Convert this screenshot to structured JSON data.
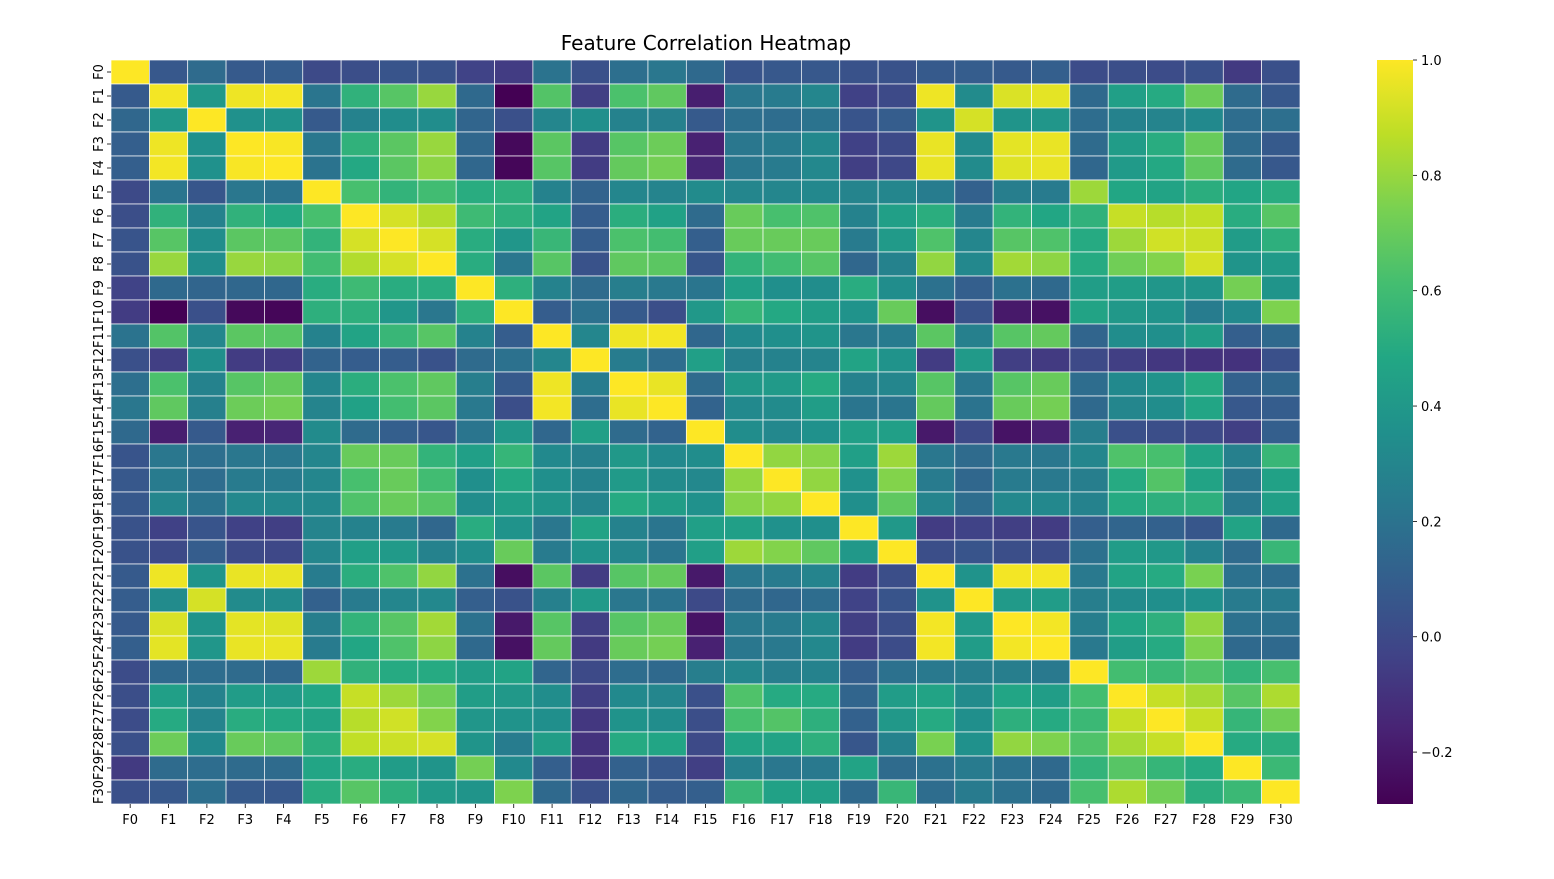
{
  "chart_data": {
    "type": "heatmap",
    "title": "Feature Correlation Heatmap",
    "xlabel": "",
    "ylabel": "",
    "colormap": "viridis",
    "color_range": [
      -0.29,
      1.0
    ],
    "colorbar_ticks": [
      "1.0",
      "0.8",
      "0.6",
      "0.4",
      "0.2",
      "0.0",
      "−0.2"
    ],
    "colorbar_tick_values": [
      1.0,
      0.8,
      0.6,
      0.4,
      0.2,
      0.0,
      -0.2
    ],
    "grid_lines": true,
    "grid_color": "#ffffff",
    "labels": [
      "F0",
      "F1",
      "F2",
      "F3",
      "F4",
      "F5",
      "F6",
      "F7",
      "F8",
      "F9",
      "F10",
      "F11",
      "F12",
      "F13",
      "F14",
      "F15",
      "F16",
      "F17",
      "F18",
      "F19",
      "F20",
      "F21",
      "F22",
      "F23",
      "F24",
      "F25",
      "F26",
      "F27",
      "F28",
      "F29",
      "F30"
    ],
    "values": [
      [
        1.0,
        0.07,
        0.16,
        0.08,
        0.09,
        0.0,
        0.02,
        0.05,
        0.04,
        -0.03,
        -0.06,
        0.2,
        0.03,
        0.18,
        0.22,
        0.15,
        0.05,
        0.07,
        0.07,
        0.04,
        0.04,
        0.08,
        0.09,
        0.08,
        0.1,
        0.01,
        0.02,
        0.01,
        0.03,
        -0.07,
        0.03
      ],
      [
        0.08,
        0.98,
        0.4,
        0.97,
        0.98,
        0.21,
        0.54,
        0.66,
        0.8,
        0.15,
        -0.29,
        0.65,
        -0.05,
        0.63,
        0.68,
        -0.18,
        0.22,
        0.24,
        0.3,
        -0.04,
        0.0,
        0.97,
        0.33,
        0.93,
        0.95,
        0.15,
        0.44,
        0.5,
        0.71,
        0.16,
        0.07
      ],
      [
        0.14,
        0.4,
        1.0,
        0.36,
        0.37,
        0.08,
        0.28,
        0.34,
        0.34,
        0.13,
        0.03,
        0.3,
        0.35,
        0.28,
        0.27,
        0.08,
        0.18,
        0.17,
        0.2,
        0.05,
        0.09,
        0.38,
        0.92,
        0.38,
        0.39,
        0.17,
        0.28,
        0.29,
        0.32,
        0.17,
        0.18
      ],
      [
        0.1,
        0.97,
        0.36,
        1.0,
        0.99,
        0.22,
        0.54,
        0.67,
        0.8,
        0.14,
        -0.26,
        0.67,
        -0.06,
        0.66,
        0.71,
        -0.17,
        0.22,
        0.24,
        0.31,
        -0.04,
        0.0,
        0.96,
        0.33,
        0.95,
        0.96,
        0.16,
        0.42,
        0.51,
        0.7,
        0.16,
        0.08
      ],
      [
        0.1,
        0.98,
        0.36,
        0.99,
        1.0,
        0.2,
        0.49,
        0.67,
        0.78,
        0.14,
        -0.27,
        0.66,
        -0.06,
        0.69,
        0.73,
        -0.15,
        0.22,
        0.24,
        0.31,
        -0.05,
        -0.01,
        0.96,
        0.33,
        0.94,
        0.96,
        0.14,
        0.41,
        0.49,
        0.68,
        0.16,
        0.07
      ],
      [
        0.0,
        0.21,
        0.06,
        0.22,
        0.2,
        1.0,
        0.62,
        0.55,
        0.6,
        0.51,
        0.53,
        0.28,
        0.12,
        0.3,
        0.29,
        0.33,
        0.3,
        0.3,
        0.31,
        0.29,
        0.3,
        0.25,
        0.11,
        0.26,
        0.24,
        0.81,
        0.48,
        0.46,
        0.52,
        0.47,
        0.51
      ],
      [
        0.02,
        0.54,
        0.28,
        0.54,
        0.49,
        0.62,
        1.0,
        0.92,
        0.85,
        0.59,
        0.53,
        0.46,
        0.09,
        0.52,
        0.45,
        0.16,
        0.7,
        0.62,
        0.64,
        0.28,
        0.44,
        0.52,
        0.24,
        0.55,
        0.48,
        0.54,
        0.89,
        0.86,
        0.88,
        0.51,
        0.66
      ],
      [
        0.05,
        0.66,
        0.34,
        0.67,
        0.67,
        0.55,
        0.92,
        1.0,
        0.92,
        0.51,
        0.39,
        0.57,
        0.09,
        0.63,
        0.61,
        0.1,
        0.7,
        0.7,
        0.7,
        0.24,
        0.41,
        0.64,
        0.3,
        0.66,
        0.64,
        0.5,
        0.81,
        0.91,
        0.9,
        0.42,
        0.53
      ],
      [
        0.04,
        0.8,
        0.34,
        0.8,
        0.78,
        0.6,
        0.85,
        0.92,
        1.0,
        0.51,
        0.22,
        0.66,
        0.04,
        0.68,
        0.67,
        0.06,
        0.55,
        0.6,
        0.66,
        0.14,
        0.28,
        0.79,
        0.31,
        0.82,
        0.78,
        0.5,
        0.72,
        0.76,
        0.92,
        0.38,
        0.41
      ],
      [
        -0.03,
        0.15,
        0.13,
        0.14,
        0.14,
        0.51,
        0.59,
        0.51,
        0.51,
        1.0,
        0.53,
        0.28,
        0.16,
        0.26,
        0.23,
        0.21,
        0.44,
        0.35,
        0.34,
        0.51,
        0.34,
        0.19,
        0.1,
        0.19,
        0.15,
        0.43,
        0.43,
        0.39,
        0.38,
        0.73,
        0.38
      ],
      [
        -0.06,
        -0.29,
        0.03,
        -0.26,
        -0.27,
        0.53,
        0.53,
        0.39,
        0.22,
        0.53,
        1.0,
        0.09,
        0.19,
        0.08,
        0.02,
        0.4,
        0.56,
        0.49,
        0.43,
        0.37,
        0.7,
        -0.24,
        0.04,
        -0.2,
        -0.23,
        0.46,
        0.4,
        0.37,
        0.25,
        0.32,
        0.75
      ],
      [
        0.2,
        0.65,
        0.3,
        0.67,
        0.66,
        0.28,
        0.46,
        0.57,
        0.66,
        0.28,
        0.09,
        1.0,
        0.3,
        0.97,
        0.98,
        0.14,
        0.32,
        0.35,
        0.38,
        0.22,
        0.24,
        0.67,
        0.27,
        0.66,
        0.69,
        0.13,
        0.34,
        0.35,
        0.43,
        0.1,
        0.15
      ],
      [
        0.03,
        -0.05,
        0.35,
        -0.06,
        -0.06,
        0.12,
        0.09,
        0.09,
        0.04,
        0.16,
        0.19,
        0.3,
        1.0,
        0.25,
        0.17,
        0.44,
        0.27,
        0.28,
        0.29,
        0.46,
        0.37,
        -0.06,
        0.41,
        -0.05,
        -0.07,
        0.0,
        -0.05,
        -0.08,
        -0.1,
        -0.1,
        0.03
      ],
      [
        0.18,
        0.63,
        0.28,
        0.66,
        0.69,
        0.3,
        0.52,
        0.63,
        0.68,
        0.26,
        0.08,
        0.97,
        0.25,
        1.0,
        0.96,
        0.16,
        0.4,
        0.41,
        0.5,
        0.28,
        0.3,
        0.66,
        0.22,
        0.66,
        0.7,
        0.17,
        0.32,
        0.37,
        0.5,
        0.11,
        0.14
      ],
      [
        0.22,
        0.68,
        0.27,
        0.71,
        0.73,
        0.29,
        0.45,
        0.61,
        0.67,
        0.23,
        0.02,
        0.98,
        0.17,
        0.96,
        1.0,
        0.12,
        0.32,
        0.33,
        0.43,
        0.21,
        0.21,
        0.69,
        0.2,
        0.7,
        0.73,
        0.15,
        0.3,
        0.34,
        0.47,
        0.07,
        0.09
      ],
      [
        0.15,
        -0.18,
        0.08,
        -0.17,
        -0.15,
        0.33,
        0.16,
        0.1,
        0.06,
        0.21,
        0.4,
        0.14,
        0.44,
        0.16,
        0.12,
        1.0,
        0.34,
        0.31,
        0.36,
        0.44,
        0.44,
        -0.2,
        0.0,
        -0.22,
        -0.17,
        0.26,
        0.03,
        0.02,
        0.0,
        -0.05,
        0.1
      ],
      [
        0.05,
        0.22,
        0.18,
        0.22,
        0.22,
        0.3,
        0.7,
        0.7,
        0.55,
        0.44,
        0.56,
        0.32,
        0.27,
        0.4,
        0.32,
        0.34,
        1.0,
        0.79,
        0.77,
        0.44,
        0.81,
        0.22,
        0.16,
        0.23,
        0.22,
        0.3,
        0.64,
        0.62,
        0.46,
        0.27,
        0.57
      ],
      [
        0.07,
        0.24,
        0.17,
        0.24,
        0.24,
        0.3,
        0.62,
        0.7,
        0.6,
        0.35,
        0.49,
        0.35,
        0.28,
        0.41,
        0.33,
        0.31,
        0.79,
        1.0,
        0.79,
        0.36,
        0.76,
        0.24,
        0.14,
        0.24,
        0.23,
        0.26,
        0.5,
        0.65,
        0.46,
        0.22,
        0.45
      ],
      [
        0.07,
        0.3,
        0.2,
        0.31,
        0.31,
        0.31,
        0.64,
        0.7,
        0.66,
        0.34,
        0.43,
        0.38,
        0.29,
        0.5,
        0.43,
        0.36,
        0.77,
        0.79,
        1.0,
        0.35,
        0.68,
        0.29,
        0.17,
        0.31,
        0.31,
        0.28,
        0.5,
        0.53,
        0.53,
        0.23,
        0.44
      ],
      [
        0.04,
        -0.04,
        0.05,
        -0.04,
        -0.05,
        0.29,
        0.28,
        0.24,
        0.14,
        0.51,
        0.37,
        0.22,
        0.46,
        0.28,
        0.21,
        0.44,
        0.44,
        0.36,
        0.35,
        1.0,
        0.4,
        -0.06,
        -0.03,
        -0.05,
        -0.06,
        0.1,
        0.13,
        0.11,
        0.06,
        0.46,
        0.15
      ],
      [
        0.04,
        0.0,
        0.09,
        0.0,
        -0.01,
        0.3,
        0.44,
        0.41,
        0.28,
        0.34,
        0.7,
        0.24,
        0.37,
        0.3,
        0.21,
        0.44,
        0.81,
        0.76,
        0.68,
        0.4,
        1.0,
        0.02,
        0.05,
        0.02,
        0.01,
        0.19,
        0.42,
        0.4,
        0.28,
        0.16,
        0.57
      ],
      [
        0.08,
        0.97,
        0.38,
        0.96,
        0.96,
        0.25,
        0.52,
        0.64,
        0.79,
        0.19,
        -0.24,
        0.67,
        -0.06,
        0.66,
        0.69,
        -0.2,
        0.22,
        0.24,
        0.29,
        -0.06,
        0.02,
        1.0,
        0.37,
        0.98,
        0.98,
        0.23,
        0.46,
        0.5,
        0.74,
        0.19,
        0.17
      ],
      [
        0.09,
        0.33,
        0.92,
        0.33,
        0.33,
        0.11,
        0.24,
        0.3,
        0.31,
        0.1,
        0.04,
        0.27,
        0.41,
        0.22,
        0.2,
        0.0,
        0.16,
        0.14,
        0.17,
        -0.03,
        0.05,
        0.37,
        1.0,
        0.41,
        0.42,
        0.26,
        0.33,
        0.35,
        0.36,
        0.24,
        0.24
      ],
      [
        0.08,
        0.93,
        0.38,
        0.95,
        0.94,
        0.26,
        0.55,
        0.66,
        0.82,
        0.19,
        -0.2,
        0.66,
        -0.05,
        0.66,
        0.7,
        -0.22,
        0.23,
        0.24,
        0.31,
        -0.05,
        0.02,
        0.98,
        0.41,
        1.0,
        0.98,
        0.26,
        0.47,
        0.53,
        0.79,
        0.19,
        0.19
      ],
      [
        0.1,
        0.95,
        0.39,
        0.96,
        0.96,
        0.24,
        0.48,
        0.64,
        0.78,
        0.15,
        -0.23,
        0.69,
        -0.07,
        0.7,
        0.73,
        -0.17,
        0.22,
        0.23,
        0.31,
        -0.06,
        0.01,
        0.98,
        0.42,
        0.98,
        1.0,
        0.23,
        0.43,
        0.5,
        0.75,
        0.15,
        0.15
      ],
      [
        0.01,
        0.15,
        0.17,
        0.16,
        0.14,
        0.81,
        0.54,
        0.5,
        0.5,
        0.43,
        0.46,
        0.13,
        0.0,
        0.17,
        0.15,
        0.26,
        0.3,
        0.26,
        0.28,
        0.1,
        0.19,
        0.23,
        0.26,
        0.26,
        0.23,
        1.0,
        0.61,
        0.58,
        0.64,
        0.55,
        0.62
      ],
      [
        0.02,
        0.44,
        0.28,
        0.42,
        0.41,
        0.48,
        0.89,
        0.81,
        0.72,
        0.43,
        0.4,
        0.34,
        -0.05,
        0.32,
        0.3,
        0.03,
        0.64,
        0.5,
        0.5,
        0.13,
        0.42,
        0.46,
        0.33,
        0.47,
        0.43,
        0.61,
        1.0,
        0.89,
        0.83,
        0.66,
        0.84
      ],
      [
        0.01,
        0.5,
        0.29,
        0.51,
        0.49,
        0.46,
        0.86,
        0.91,
        0.76,
        0.39,
        0.37,
        0.35,
        -0.08,
        0.37,
        0.34,
        0.02,
        0.62,
        0.65,
        0.53,
        0.11,
        0.4,
        0.5,
        0.35,
        0.53,
        0.5,
        0.58,
        0.89,
        1.0,
        0.89,
        0.56,
        0.72
      ],
      [
        0.03,
        0.71,
        0.32,
        0.7,
        0.68,
        0.52,
        0.88,
        0.9,
        0.92,
        0.38,
        0.25,
        0.43,
        -0.1,
        0.5,
        0.47,
        0.0,
        0.46,
        0.46,
        0.53,
        0.06,
        0.28,
        0.74,
        0.36,
        0.79,
        0.75,
        0.64,
        0.83,
        0.89,
        1.0,
        0.5,
        0.52
      ],
      [
        -0.07,
        0.16,
        0.17,
        0.16,
        0.16,
        0.47,
        0.51,
        0.42,
        0.38,
        0.73,
        0.32,
        0.1,
        -0.1,
        0.11,
        0.07,
        -0.05,
        0.27,
        0.22,
        0.23,
        0.46,
        0.16,
        0.19,
        0.24,
        0.19,
        0.15,
        0.55,
        0.66,
        0.56,
        0.5,
        1.0,
        0.58
      ],
      [
        0.03,
        0.07,
        0.18,
        0.08,
        0.07,
        0.51,
        0.66,
        0.53,
        0.41,
        0.38,
        0.75,
        0.15,
        0.03,
        0.14,
        0.09,
        0.1,
        0.57,
        0.45,
        0.44,
        0.15,
        0.57,
        0.17,
        0.24,
        0.19,
        0.15,
        0.62,
        0.84,
        0.72,
        0.52,
        0.58,
        1.0
      ]
    ]
  }
}
